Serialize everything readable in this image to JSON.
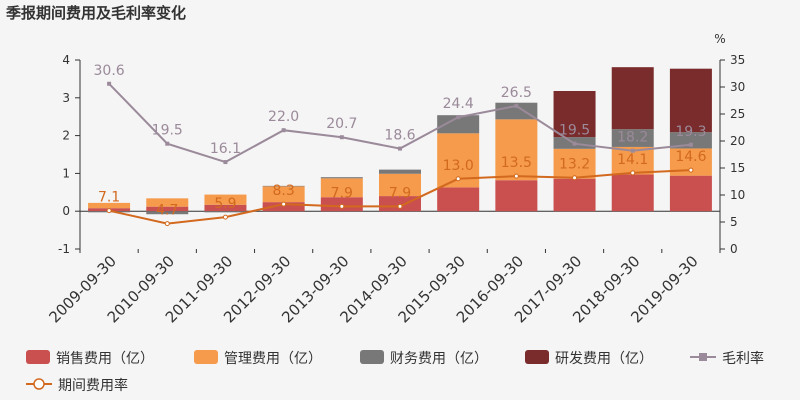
{
  "title": "季报期间费用及毛利率变化",
  "right_axis_unit": "%",
  "colors": {
    "sales": "#c9504f",
    "admin": "#f59b4b",
    "finance": "#787878",
    "rnd": "#7a2b2b",
    "gross_margin": "#9b8a9a",
    "expense_rate": "#d2691e",
    "axis": "#333333",
    "tick": "#555555",
    "background": "#f5f5f5"
  },
  "chart_data": {
    "type": "bar",
    "categories": [
      "2009-09-30",
      "2010-09-30",
      "2011-09-30",
      "2012-09-30",
      "2013-09-30",
      "2014-09-30",
      "2015-09-30",
      "2016-09-30",
      "2017-09-30",
      "2018-09-30",
      "2019-09-30"
    ],
    "y_left": {
      "min": -1,
      "max": 4,
      "ticks": [
        -1,
        0,
        1,
        2,
        3,
        4
      ]
    },
    "y_right": {
      "min": 0,
      "max": 35,
      "ticks": [
        0,
        5,
        10,
        15,
        20,
        25,
        30,
        35
      ],
      "unit": "%"
    },
    "series": [
      {
        "key": "sales",
        "name": "销售费用（亿）",
        "type": "bar",
        "values": [
          0.08,
          0.12,
          0.17,
          0.24,
          0.37,
          0.4,
          0.63,
          0.82,
          0.86,
          0.97,
          0.94
        ]
      },
      {
        "key": "admin",
        "name": "管理费用（亿）",
        "type": "bar",
        "values": [
          0.14,
          0.22,
          0.27,
          0.42,
          0.5,
          0.59,
          1.43,
          1.61,
          0.79,
          0.73,
          0.72
        ]
      },
      {
        "key": "finance",
        "name": "财务费用（亿）",
        "type": "bar",
        "values": [
          -0.03,
          -0.08,
          -0.03,
          0.01,
          0.03,
          0.11,
          0.48,
          0.44,
          0.31,
          0.47,
          0.43
        ]
      },
      {
        "key": "rnd",
        "name": "研发费用（亿）",
        "type": "bar",
        "values": [
          0,
          0,
          0,
          0,
          0,
          0,
          0,
          0,
          1.22,
          1.64,
          1.68
        ]
      },
      {
        "key": "gross_margin",
        "name": "毛利率",
        "type": "line",
        "axis": "right",
        "values": [
          30.6,
          19.5,
          16.1,
          22.0,
          20.7,
          18.6,
          24.4,
          26.5,
          19.5,
          18.2,
          19.3
        ],
        "labels": [
          "30.6",
          "19.5",
          "16.1",
          "22.0",
          "20.7",
          "18.6",
          "24.4",
          "26.5",
          "19.5",
          "18.2",
          "19.3"
        ]
      },
      {
        "key": "expense_rate",
        "name": "期间费用率",
        "type": "line",
        "axis": "right",
        "values": [
          7.1,
          4.7,
          5.9,
          8.3,
          7.9,
          7.9,
          13.0,
          13.5,
          13.2,
          14.1,
          14.6
        ],
        "labels": [
          "7.1",
          "4.7",
          "5.9",
          "8.3",
          "7.9",
          "7.9",
          "13.0",
          "13.5",
          "13.2",
          "14.1",
          "14.6"
        ]
      }
    ],
    "legend_position": "bottom",
    "grid": false
  }
}
